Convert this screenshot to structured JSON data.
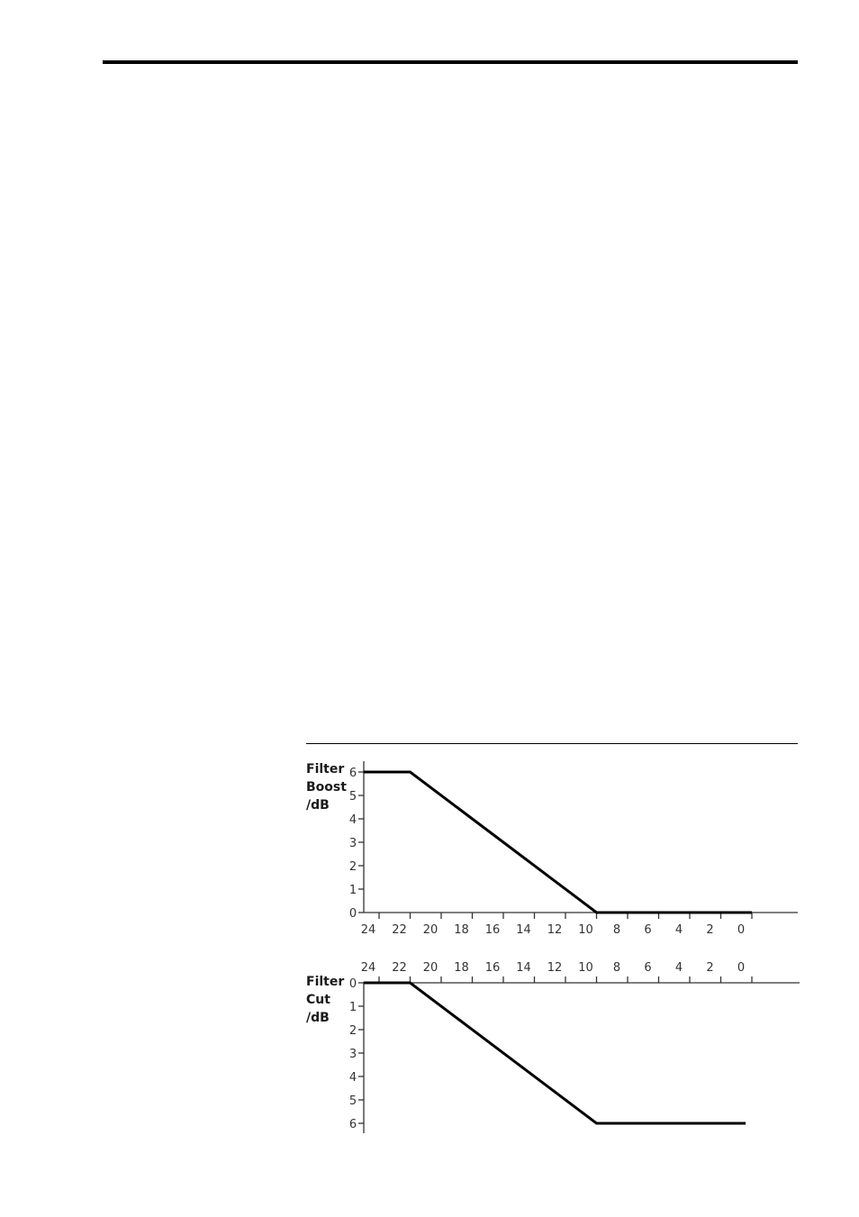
{
  "chart_data": [
    {
      "type": "line",
      "ylabel_lines": [
        "Filter",
        "Boost",
        "/dB"
      ],
      "x_ticks": [
        24,
        22,
        20,
        18,
        16,
        14,
        12,
        10,
        8,
        6,
        4,
        2,
        0
      ],
      "y_ticks": [
        0,
        1,
        2,
        3,
        4,
        5,
        6
      ],
      "xlim": [
        25,
        0
      ],
      "ylim": [
        0,
        6
      ],
      "x_axis_position": "bottom",
      "series": [
        {
          "x": [
            25,
            22,
            10,
            0
          ],
          "y": [
            6,
            6,
            0,
            0
          ]
        }
      ]
    },
    {
      "type": "line",
      "ylabel_lines": [
        "Filter",
        "Cut",
        "/dB"
      ],
      "x_ticks": [
        24,
        22,
        20,
        18,
        16,
        14,
        12,
        10,
        8,
        6,
        4,
        2,
        0
      ],
      "y_ticks": [
        0,
        1,
        2,
        3,
        4,
        5,
        6
      ],
      "xlim": [
        25,
        0
      ],
      "ylim": [
        0,
        6
      ],
      "x_axis_position": "top",
      "y_inverted": true,
      "series": [
        {
          "x": [
            25,
            22,
            10,
            0.4
          ],
          "y": [
            0,
            0,
            6,
            6
          ]
        }
      ]
    }
  ]
}
